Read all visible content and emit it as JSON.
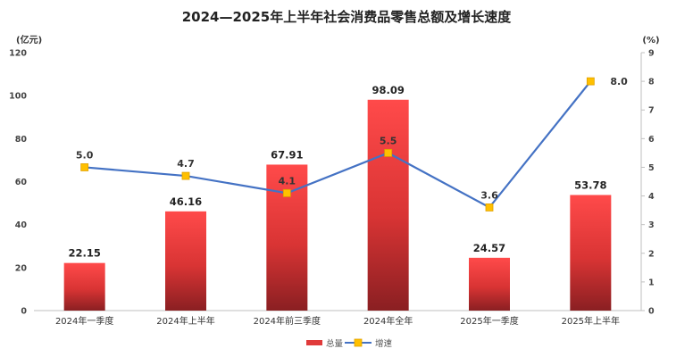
{
  "chart_data": {
    "type": "bar",
    "title": "2024—2025年上半年社会消费品零售总额及增长速度",
    "categories": [
      "2024年一季度",
      "2024年上半年",
      "2024年前三季度",
      "2024年全年",
      "2025年一季度",
      "2025年上半年"
    ],
    "left_axis": {
      "unit": "(亿元)",
      "ylim": [
        0,
        120
      ],
      "ticks": [
        0,
        20,
        40,
        60,
        80,
        100,
        120
      ]
    },
    "right_axis": {
      "unit": "(%)",
      "ylim": [
        0,
        9
      ],
      "ticks": [
        0,
        1,
        2,
        3,
        4,
        5,
        6,
        7,
        8,
        9
      ]
    },
    "series": [
      {
        "name": "总量",
        "type": "bar",
        "axis": "left",
        "values": [
          22.15,
          46.16,
          67.91,
          98.09,
          24.57,
          53.78
        ],
        "labels": [
          "22.15",
          "46.16",
          "67.91",
          "98.09",
          "24.57",
          "53.78"
        ],
        "color": "#e8373a"
      },
      {
        "name": "增速",
        "type": "line",
        "axis": "right",
        "values": [
          5.0,
          4.7,
          4.1,
          5.5,
          3.6,
          8.0
        ],
        "labels": [
          "5.0",
          "4.7",
          "4.1",
          "5.5",
          "3.6",
          "8.0"
        ],
        "color": "#4472c4",
        "marker_color": "#ffc000"
      }
    ],
    "grid": false,
    "legend_position": "bottom"
  }
}
